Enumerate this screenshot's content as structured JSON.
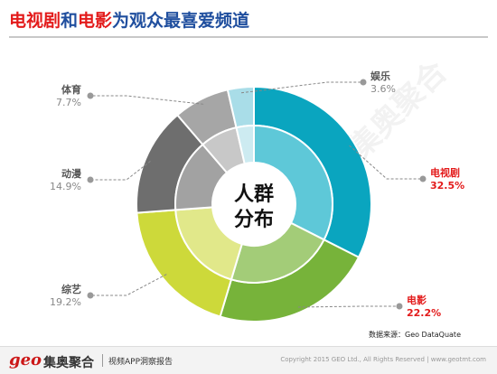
{
  "title": {
    "part1": "电视剧",
    "part2": "和",
    "part3": "电影",
    "part4": "为观众最喜爱频道"
  },
  "center_label": {
    "line1": "人群",
    "line2": "分布"
  },
  "source": "数据来源：Geo DataQuate",
  "footer": {
    "logo_text": "geo",
    "logo_cn": "集奥聚合",
    "report": "视频APP洞察报告",
    "copyright": "Copyright 2015 GEO Ltd., All Rights Reserved  |  www.geotmt.com"
  },
  "watermark": "集奥聚合",
  "chart_data": {
    "type": "pie",
    "variant": "donut",
    "start": "12 o'clock, clockwise",
    "categories": [
      "电视剧",
      "电影",
      "综艺",
      "动漫",
      "体育",
      "娱乐"
    ],
    "values": [
      32.5,
      22.2,
      19.2,
      14.9,
      7.7,
      3.6
    ],
    "value_labels": [
      "32.5%",
      "22.2%",
      "19.2%",
      "14.9%",
      "7.7%",
      "3.6%"
    ],
    "highlighted": [
      "电视剧",
      "电影"
    ],
    "colors": [
      "#0aa5bf",
      "#77b33a",
      "#cdd93a",
      "#6e6e6e",
      "#a6a6a6",
      "#a9dde8"
    ],
    "light_colors": [
      "#5ec8d8",
      "#a3cc78",
      "#e1e88a",
      "#a2a2a2",
      "#c8c8c8",
      "#cdebf1"
    ],
    "label_sides": [
      "right",
      "right",
      "left",
      "left",
      "left",
      "right"
    ]
  }
}
